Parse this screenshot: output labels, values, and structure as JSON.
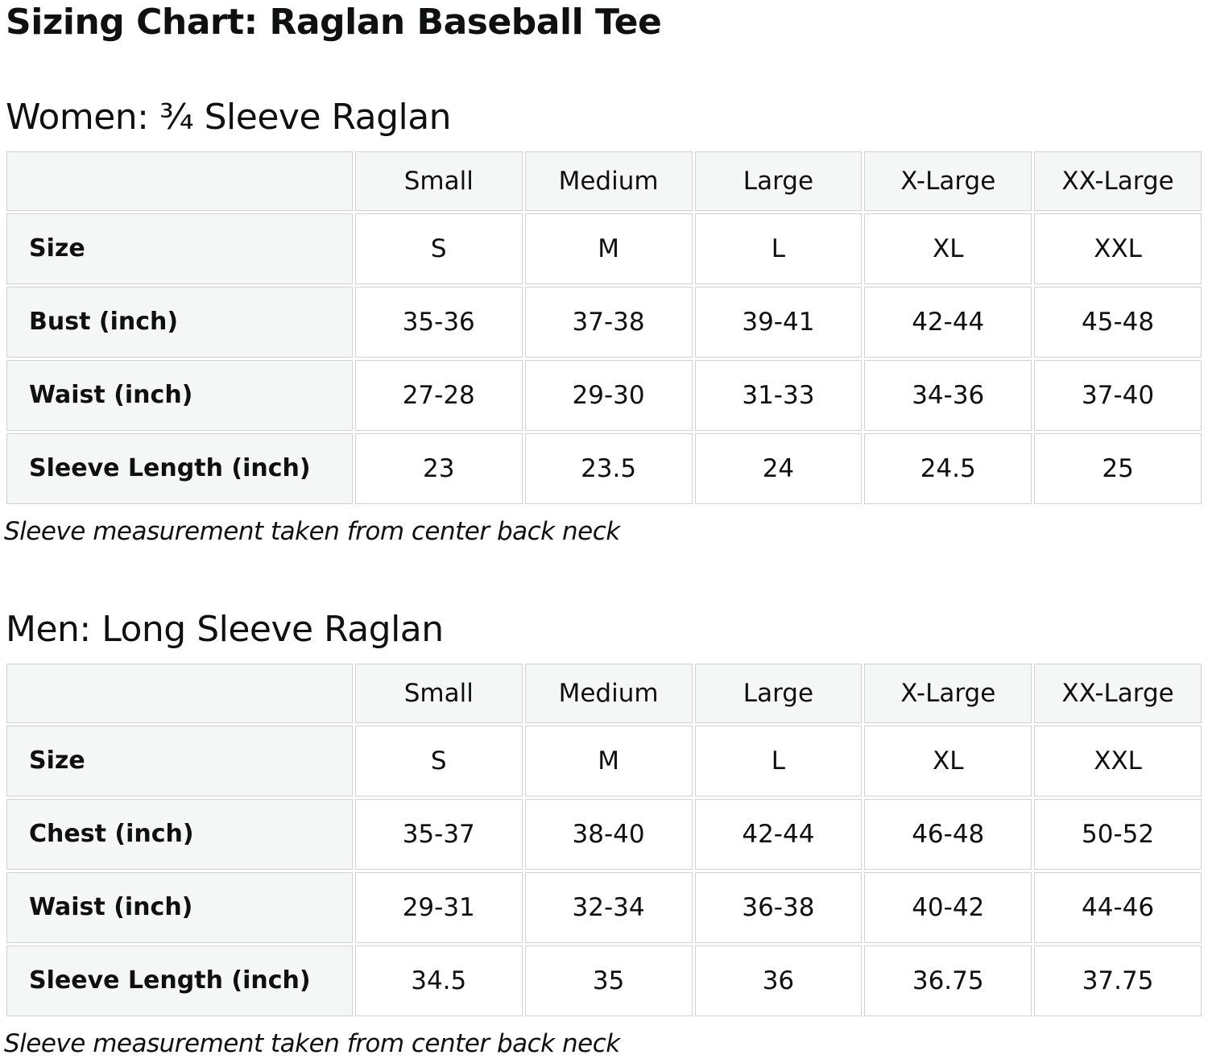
{
  "page": {
    "title": "Sizing Chart: Raglan Baseball Tee"
  },
  "colors": {
    "text": "#0f1111",
    "cell_border": "#d2d2d2",
    "header_cell_fill": "#f5f6f6",
    "data_cell_fill": "#ffffff",
    "background": "#ffffff"
  },
  "sections": [
    {
      "id": "women",
      "heading": "Women: ¾ Sleeve Raglan",
      "note": "Sleeve measurement taken from center back neck",
      "table": {
        "column_headers": [
          "",
          "Small",
          "Medium",
          "Large",
          "X-Large",
          "XX-Large"
        ],
        "rows": [
          {
            "label": "Size",
            "values": [
              "S",
              "M",
              "L",
              "XL",
              "XXL"
            ]
          },
          {
            "label": "Bust (inch)",
            "values": [
              "35-36",
              "37-38",
              "39-41",
              "42-44",
              "45-48"
            ]
          },
          {
            "label": "Waist (inch)",
            "values": [
              "27-28",
              "29-30",
              "31-33",
              "34-36",
              "37-40"
            ]
          },
          {
            "label": "Sleeve Length (inch)",
            "values": [
              "23",
              "23.5",
              "24",
              "24.5",
              "25"
            ]
          }
        ]
      }
    },
    {
      "id": "men",
      "heading": "Men: Long Sleeve Raglan",
      "note": "Sleeve measurement taken from center back neck",
      "table": {
        "column_headers": [
          "",
          "Small",
          "Medium",
          "Large",
          "X-Large",
          "XX-Large"
        ],
        "rows": [
          {
            "label": "Size",
            "values": [
              "S",
              "M",
              "L",
              "XL",
              "XXL"
            ]
          },
          {
            "label": "Chest (inch)",
            "values": [
              "35-37",
              "38-40",
              "42-44",
              "46-48",
              "50-52"
            ]
          },
          {
            "label": "Waist (inch)",
            "values": [
              "29-31",
              "32-34",
              "36-38",
              "40-42",
              "44-46"
            ]
          },
          {
            "label": "Sleeve Length (inch)",
            "values": [
              "34.5",
              "35",
              "36",
              "36.75",
              "37.75"
            ]
          }
        ]
      }
    }
  ]
}
